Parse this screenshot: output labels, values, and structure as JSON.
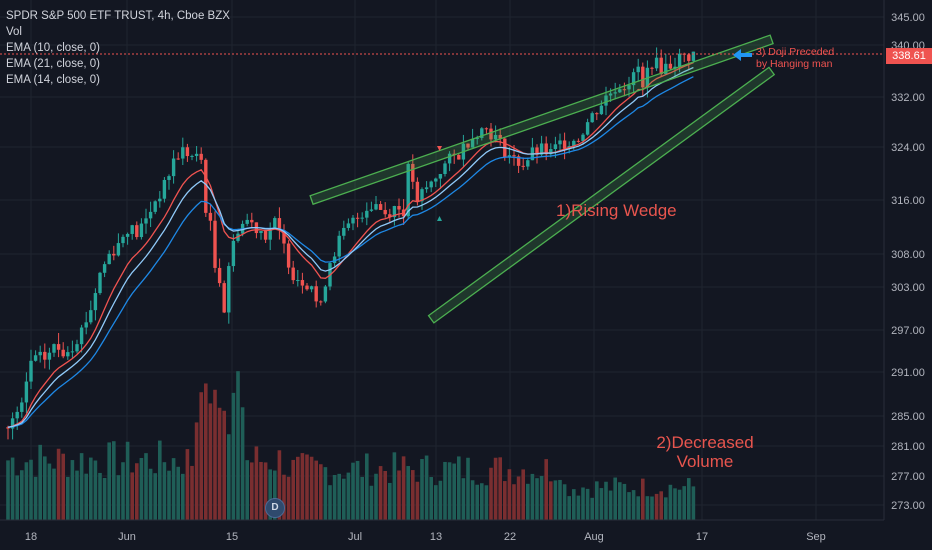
{
  "legend": {
    "title": "SPDR S&P 500 ETF TRUST, 4h, Cboe BZX",
    "vol": "Vol",
    "ema10": "EMA (10, close, 0)",
    "ema21": "EMA (21, close, 0)",
    "ema14": "EMA (14, close, 0)"
  },
  "annotations": {
    "wedge": "1)Rising Wedge",
    "volume_line1": "2)Decreased",
    "volume_line2": "Volume",
    "doji_line1": "3) Doji Preceded",
    "doji_line2": "by Hanging man",
    "event_marker": "D"
  },
  "price_tag": "338.61",
  "colors": {
    "up": "#26a69a",
    "down": "#ef5350",
    "ema10": "#ef5350",
    "ema21": "#1e88e5",
    "ema14": "#90caf9",
    "wedge": "#4caf50",
    "background": "#131722",
    "arrow": "#2196f3"
  },
  "chart_data": {
    "type": "candlestick",
    "title": "SPDR S&P 500 ETF TRUST, 4h, Cboe BZX",
    "y_ticks": [
      345.0,
      340.0,
      332.0,
      324.0,
      316.0,
      308.0,
      303.0,
      297.0,
      291.0,
      285.0,
      281.0,
      277.0,
      273.0
    ],
    "y_tick_labels": [
      "345.00",
      "340.00",
      "332.00",
      "324.00",
      "316.00",
      "308.00",
      "303.00",
      "297.00",
      "291.00",
      "285.00",
      "281.00",
      "277.00",
      "273.00"
    ],
    "x_tick_labels": [
      "18",
      "Jun",
      "15",
      "Jul",
      "13",
      "22",
      "Aug",
      "17",
      "Sep"
    ],
    "last_price": 338.61,
    "price_path": [
      [
        0,
        283.5
      ],
      [
        3,
        286.0
      ],
      [
        5,
        292.5
      ],
      [
        8,
        293.0
      ],
      [
        10,
        294.5
      ],
      [
        12,
        294.0
      ],
      [
        14,
        295.0
      ],
      [
        16,
        297.0
      ],
      [
        18,
        300.0
      ],
      [
        20,
        305.0
      ],
      [
        22,
        308.0
      ],
      [
        24,
        309.5
      ],
      [
        26,
        312.0
      ],
      [
        28,
        311.0
      ],
      [
        30,
        313.0
      ],
      [
        32,
        316.0
      ],
      [
        34,
        318.0
      ],
      [
        36,
        322.0
      ],
      [
        38,
        323.5
      ],
      [
        40,
        322.5
      ],
      [
        42,
        322.0
      ],
      [
        43,
        315.0
      ],
      [
        44,
        312.0
      ],
      [
        45,
        306.0
      ],
      [
        46,
        304.5
      ],
      [
        47,
        300.0
      ],
      [
        48,
        306.5
      ],
      [
        50,
        312.0
      ],
      [
        52,
        313.0
      ],
      [
        54,
        312.0
      ],
      [
        56,
        311.0
      ],
      [
        58,
        312.5
      ],
      [
        60,
        309.0
      ],
      [
        62,
        305.0
      ],
      [
        64,
        304.0
      ],
      [
        66,
        303.5
      ],
      [
        67,
        301.0
      ],
      [
        68,
        300.0
      ],
      [
        69,
        304.0
      ],
      [
        70,
        307.0
      ],
      [
        72,
        310.0
      ],
      [
        74,
        312.0
      ],
      [
        76,
        313.5
      ],
      [
        78,
        315.0
      ],
      [
        80,
        315.5
      ],
      [
        82,
        314.0
      ],
      [
        84,
        315.0
      ],
      [
        86,
        314.5
      ],
      [
        87,
        320.5
      ],
      [
        88,
        319.0
      ],
      [
        89,
        315.0
      ],
      [
        90,
        317.0
      ],
      [
        92,
        318.5
      ],
      [
        94,
        320.5
      ],
      [
        96,
        322.0
      ],
      [
        98,
        323.0
      ],
      [
        100,
        325.0
      ],
      [
        102,
        326.5
      ],
      [
        104,
        327.0
      ],
      [
        106,
        325.5
      ],
      [
        108,
        323.5
      ],
      [
        110,
        322.0
      ],
      [
        112,
        321.5
      ],
      [
        114,
        323.0
      ],
      [
        116,
        323.5
      ],
      [
        118,
        323.0
      ],
      [
        120,
        324.5
      ],
      [
        122,
        325.0
      ],
      [
        124,
        325.5
      ],
      [
        126,
        328.0
      ],
      [
        128,
        330.0
      ],
      [
        130,
        332.0
      ],
      [
        132,
        333.5
      ],
      [
        134,
        334.0
      ],
      [
        136,
        335.0
      ],
      [
        137,
        336.5
      ],
      [
        138,
        333.0
      ],
      [
        139,
        336.0
      ],
      [
        140,
        337.5
      ],
      [
        142,
        336.5
      ],
      [
        144,
        337.0
      ],
      [
        146,
        338.0
      ],
      [
        148,
        338.3
      ],
      [
        149,
        338.61
      ]
    ],
    "series": [
      {
        "name": "EMA (10, close, 0)"
      },
      {
        "name": "EMA (21, close, 0)"
      },
      {
        "name": "EMA (14, close, 0)"
      }
    ],
    "volume_shown": true,
    "volume_trend": "decreasing",
    "wedge_upper": [
      [
        66,
        316.0
      ],
      [
        166,
        341.0
      ]
    ],
    "wedge_lower": [
      [
        92,
        298.5
      ],
      [
        166,
        336.0
      ]
    ]
  }
}
